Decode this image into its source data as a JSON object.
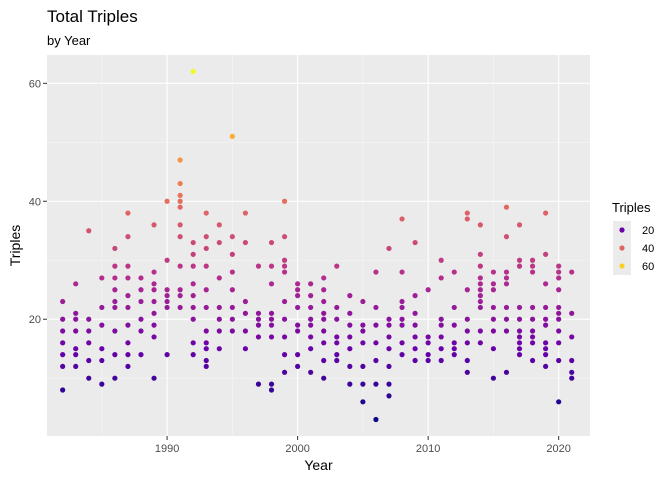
{
  "chart_data": {
    "type": "scatter",
    "title": "Total Triples",
    "subtitle": "by Year",
    "xlabel": "Year",
    "ylabel": "Triples",
    "xlim": [
      1980.8,
      2022.4
    ],
    "ylim": [
      0.2,
      64.8
    ],
    "xticks": [
      1990,
      2000,
      2010,
      2020
    ],
    "yticks": [
      20,
      40,
      60
    ],
    "grid": true,
    "legend": {
      "title": "Triples",
      "position": "right",
      "entries": [
        {
          "label": "20",
          "color": "#6a00a8"
        },
        {
          "label": "40",
          "color": "#e16462"
        },
        {
          "label": "60",
          "color": "#fcce25"
        }
      ]
    },
    "color_scale": {
      "name": "plasma",
      "domain": [
        3,
        62
      ],
      "stops": [
        "#0d0887",
        "#6a00a8",
        "#b12a90",
        "#e16462",
        "#fca636",
        "#f0f921"
      ]
    },
    "points": [
      [
        1982,
        8
      ],
      [
        1982,
        12
      ],
      [
        1982,
        14
      ],
      [
        1982,
        16
      ],
      [
        1982,
        18
      ],
      [
        1982,
        20
      ],
      [
        1982,
        23
      ],
      [
        1983,
        12
      ],
      [
        1983,
        14
      ],
      [
        1983,
        15
      ],
      [
        1983,
        18
      ],
      [
        1983,
        20
      ],
      [
        1983,
        21
      ],
      [
        1983,
        26
      ],
      [
        1984,
        10
      ],
      [
        1984,
        13
      ],
      [
        1984,
        16
      ],
      [
        1984,
        18
      ],
      [
        1984,
        20
      ],
      [
        1984,
        35
      ],
      [
        1985,
        9
      ],
      [
        1985,
        13
      ],
      [
        1985,
        15
      ],
      [
        1985,
        19
      ],
      [
        1985,
        22
      ],
      [
        1985,
        27
      ],
      [
        1986,
        10
      ],
      [
        1986,
        14
      ],
      [
        1986,
        18
      ],
      [
        1986,
        22
      ],
      [
        1986,
        23
      ],
      [
        1986,
        25
      ],
      [
        1986,
        27
      ],
      [
        1986,
        29
      ],
      [
        1986,
        32
      ],
      [
        1987,
        12
      ],
      [
        1987,
        14
      ],
      [
        1987,
        16
      ],
      [
        1987,
        19
      ],
      [
        1987,
        22
      ],
      [
        1987,
        24
      ],
      [
        1987,
        27
      ],
      [
        1987,
        29
      ],
      [
        1987,
        34
      ],
      [
        1987,
        38
      ],
      [
        1988,
        14
      ],
      [
        1988,
        18
      ],
      [
        1988,
        20
      ],
      [
        1988,
        23
      ],
      [
        1988,
        25
      ],
      [
        1988,
        27
      ],
      [
        1989,
        10
      ],
      [
        1989,
        17
      ],
      [
        1989,
        19
      ],
      [
        1989,
        21
      ],
      [
        1989,
        23
      ],
      [
        1989,
        25
      ],
      [
        1989,
        26
      ],
      [
        1989,
        28
      ],
      [
        1989,
        36
      ],
      [
        1990,
        14
      ],
      [
        1990,
        22
      ],
      [
        1990,
        23
      ],
      [
        1990,
        24
      ],
      [
        1990,
        25
      ],
      [
        1990,
        30
      ],
      [
        1990,
        40
      ],
      [
        1991,
        22
      ],
      [
        1991,
        24
      ],
      [
        1991,
        25
      ],
      [
        1991,
        29
      ],
      [
        1991,
        34
      ],
      [
        1991,
        36
      ],
      [
        1991,
        39
      ],
      [
        1991,
        40
      ],
      [
        1991,
        41
      ],
      [
        1991,
        43
      ],
      [
        1991,
        47
      ],
      [
        1992,
        14
      ],
      [
        1992,
        16
      ],
      [
        1992,
        20
      ],
      [
        1992,
        22
      ],
      [
        1992,
        24
      ],
      [
        1992,
        26
      ],
      [
        1992,
        29
      ],
      [
        1992,
        31
      ],
      [
        1992,
        33
      ],
      [
        1992,
        62
      ],
      [
        1993,
        12
      ],
      [
        1993,
        13
      ],
      [
        1993,
        15
      ],
      [
        1993,
        16
      ],
      [
        1993,
        18
      ],
      [
        1993,
        22
      ],
      [
        1993,
        25
      ],
      [
        1993,
        29
      ],
      [
        1993,
        32
      ],
      [
        1993,
        34
      ],
      [
        1993,
        38
      ],
      [
        1994,
        15
      ],
      [
        1994,
        18
      ],
      [
        1994,
        20
      ],
      [
        1994,
        22
      ],
      [
        1994,
        27
      ],
      [
        1994,
        33
      ],
      [
        1994,
        36
      ],
      [
        1995,
        18
      ],
      [
        1995,
        20
      ],
      [
        1995,
        22
      ],
      [
        1995,
        25
      ],
      [
        1995,
        28
      ],
      [
        1995,
        31
      ],
      [
        1995,
        34
      ],
      [
        1995,
        51
      ],
      [
        1996,
        15
      ],
      [
        1996,
        18
      ],
      [
        1996,
        21
      ],
      [
        1996,
        23
      ],
      [
        1996,
        33
      ],
      [
        1996,
        38
      ],
      [
        1997,
        9
      ],
      [
        1997,
        17
      ],
      [
        1997,
        19
      ],
      [
        1997,
        20
      ],
      [
        1997,
        21
      ],
      [
        1997,
        29
      ],
      [
        1998,
        8
      ],
      [
        1998,
        9
      ],
      [
        1998,
        17
      ],
      [
        1998,
        19
      ],
      [
        1998,
        20
      ],
      [
        1998,
        21
      ],
      [
        1998,
        26
      ],
      [
        1998,
        29
      ],
      [
        1998,
        33
      ],
      [
        1999,
        11
      ],
      [
        1999,
        14
      ],
      [
        1999,
        17
      ],
      [
        1999,
        20
      ],
      [
        1999,
        23
      ],
      [
        1999,
        28
      ],
      [
        1999,
        29
      ],
      [
        1999,
        30
      ],
      [
        1999,
        34
      ],
      [
        1999,
        40
      ],
      [
        2000,
        12
      ],
      [
        2000,
        14
      ],
      [
        2000,
        18
      ],
      [
        2000,
        19
      ],
      [
        2000,
        22
      ],
      [
        2000,
        24
      ],
      [
        2000,
        25
      ],
      [
        2000,
        26
      ],
      [
        2001,
        11
      ],
      [
        2001,
        15
      ],
      [
        2001,
        17
      ],
      [
        2001,
        19
      ],
      [
        2001,
        20
      ],
      [
        2001,
        22
      ],
      [
        2001,
        24
      ],
      [
        2001,
        26
      ],
      [
        2002,
        10
      ],
      [
        2002,
        13
      ],
      [
        2002,
        16
      ],
      [
        2002,
        18
      ],
      [
        2002,
        20
      ],
      [
        2002,
        21
      ],
      [
        2002,
        23
      ],
      [
        2002,
        25
      ],
      [
        2002,
        27
      ],
      [
        2003,
        13
      ],
      [
        2003,
        14
      ],
      [
        2003,
        16
      ],
      [
        2003,
        17
      ],
      [
        2003,
        20
      ],
      [
        2003,
        22
      ],
      [
        2003,
        29
      ],
      [
        2004,
        9
      ],
      [
        2004,
        12
      ],
      [
        2004,
        15
      ],
      [
        2004,
        17
      ],
      [
        2004,
        19
      ],
      [
        2004,
        21
      ],
      [
        2004,
        24
      ],
      [
        2005,
        6
      ],
      [
        2005,
        9
      ],
      [
        2005,
        12
      ],
      [
        2005,
        16
      ],
      [
        2005,
        18
      ],
      [
        2005,
        19
      ],
      [
        2005,
        23
      ],
      [
        2006,
        3
      ],
      [
        2006,
        9
      ],
      [
        2006,
        13
      ],
      [
        2006,
        16
      ],
      [
        2006,
        19
      ],
      [
        2006,
        22
      ],
      [
        2006,
        28
      ],
      [
        2007,
        7
      ],
      [
        2007,
        9
      ],
      [
        2007,
        12
      ],
      [
        2007,
        15
      ],
      [
        2007,
        17
      ],
      [
        2007,
        19
      ],
      [
        2007,
        20
      ],
      [
        2007,
        32
      ],
      [
        2008,
        14
      ],
      [
        2008,
        16
      ],
      [
        2008,
        19
      ],
      [
        2008,
        20
      ],
      [
        2008,
        22
      ],
      [
        2008,
        23
      ],
      [
        2008,
        28
      ],
      [
        2008,
        37
      ],
      [
        2009,
        13
      ],
      [
        2009,
        15
      ],
      [
        2009,
        17
      ],
      [
        2009,
        19
      ],
      [
        2009,
        21
      ],
      [
        2009,
        24
      ],
      [
        2009,
        33
      ],
      [
        2010,
        13
      ],
      [
        2010,
        14
      ],
      [
        2010,
        16
      ],
      [
        2010,
        17
      ],
      [
        2010,
        25
      ],
      [
        2011,
        13
      ],
      [
        2011,
        15
      ],
      [
        2011,
        17
      ],
      [
        2011,
        19
      ],
      [
        2011,
        20
      ],
      [
        2011,
        27
      ],
      [
        2011,
        30
      ],
      [
        2012,
        14
      ],
      [
        2012,
        15
      ],
      [
        2012,
        16
      ],
      [
        2012,
        19
      ],
      [
        2012,
        22
      ],
      [
        2012,
        28
      ],
      [
        2013,
        11
      ],
      [
        2013,
        13
      ],
      [
        2013,
        16
      ],
      [
        2013,
        18
      ],
      [
        2013,
        20
      ],
      [
        2013,
        25
      ],
      [
        2013,
        37
      ],
      [
        2013,
        38
      ],
      [
        2014,
        16
      ],
      [
        2014,
        18
      ],
      [
        2014,
        22
      ],
      [
        2014,
        23
      ],
      [
        2014,
        24
      ],
      [
        2014,
        25
      ],
      [
        2014,
        26
      ],
      [
        2014,
        27
      ],
      [
        2014,
        29
      ],
      [
        2014,
        31
      ],
      [
        2014,
        36
      ],
      [
        2015,
        10
      ],
      [
        2015,
        15
      ],
      [
        2015,
        18
      ],
      [
        2015,
        20
      ],
      [
        2015,
        22
      ],
      [
        2015,
        25
      ],
      [
        2015,
        26
      ],
      [
        2015,
        28
      ],
      [
        2016,
        11
      ],
      [
        2016,
        18
      ],
      [
        2016,
        20
      ],
      [
        2016,
        22
      ],
      [
        2016,
        26
      ],
      [
        2016,
        27
      ],
      [
        2016,
        28
      ],
      [
        2016,
        34
      ],
      [
        2016,
        39
      ],
      [
        2017,
        14
      ],
      [
        2017,
        15
      ],
      [
        2017,
        16
      ],
      [
        2017,
        17
      ],
      [
        2017,
        18
      ],
      [
        2017,
        20
      ],
      [
        2017,
        22
      ],
      [
        2017,
        29
      ],
      [
        2017,
        30
      ],
      [
        2017,
        36
      ],
      [
        2018,
        13
      ],
      [
        2018,
        16
      ],
      [
        2018,
        17
      ],
      [
        2018,
        18
      ],
      [
        2018,
        20
      ],
      [
        2018,
        22
      ],
      [
        2018,
        28
      ],
      [
        2018,
        29
      ],
      [
        2018,
        30
      ],
      [
        2019,
        12
      ],
      [
        2019,
        14
      ],
      [
        2019,
        15
      ],
      [
        2019,
        16
      ],
      [
        2019,
        19
      ],
      [
        2019,
        20
      ],
      [
        2019,
        22
      ],
      [
        2019,
        26
      ],
      [
        2019,
        31
      ],
      [
        2019,
        38
      ],
      [
        2020,
        6
      ],
      [
        2020,
        13
      ],
      [
        2020,
        16
      ],
      [
        2020,
        18
      ],
      [
        2020,
        20
      ],
      [
        2020,
        21
      ],
      [
        2020,
        22
      ],
      [
        2020,
        25
      ],
      [
        2020,
        27
      ],
      [
        2020,
        28
      ],
      [
        2020,
        29
      ],
      [
        2021,
        10
      ],
      [
        2021,
        11
      ],
      [
        2021,
        13
      ],
      [
        2021,
        17
      ],
      [
        2021,
        21
      ],
      [
        2021,
        28
      ]
    ]
  }
}
